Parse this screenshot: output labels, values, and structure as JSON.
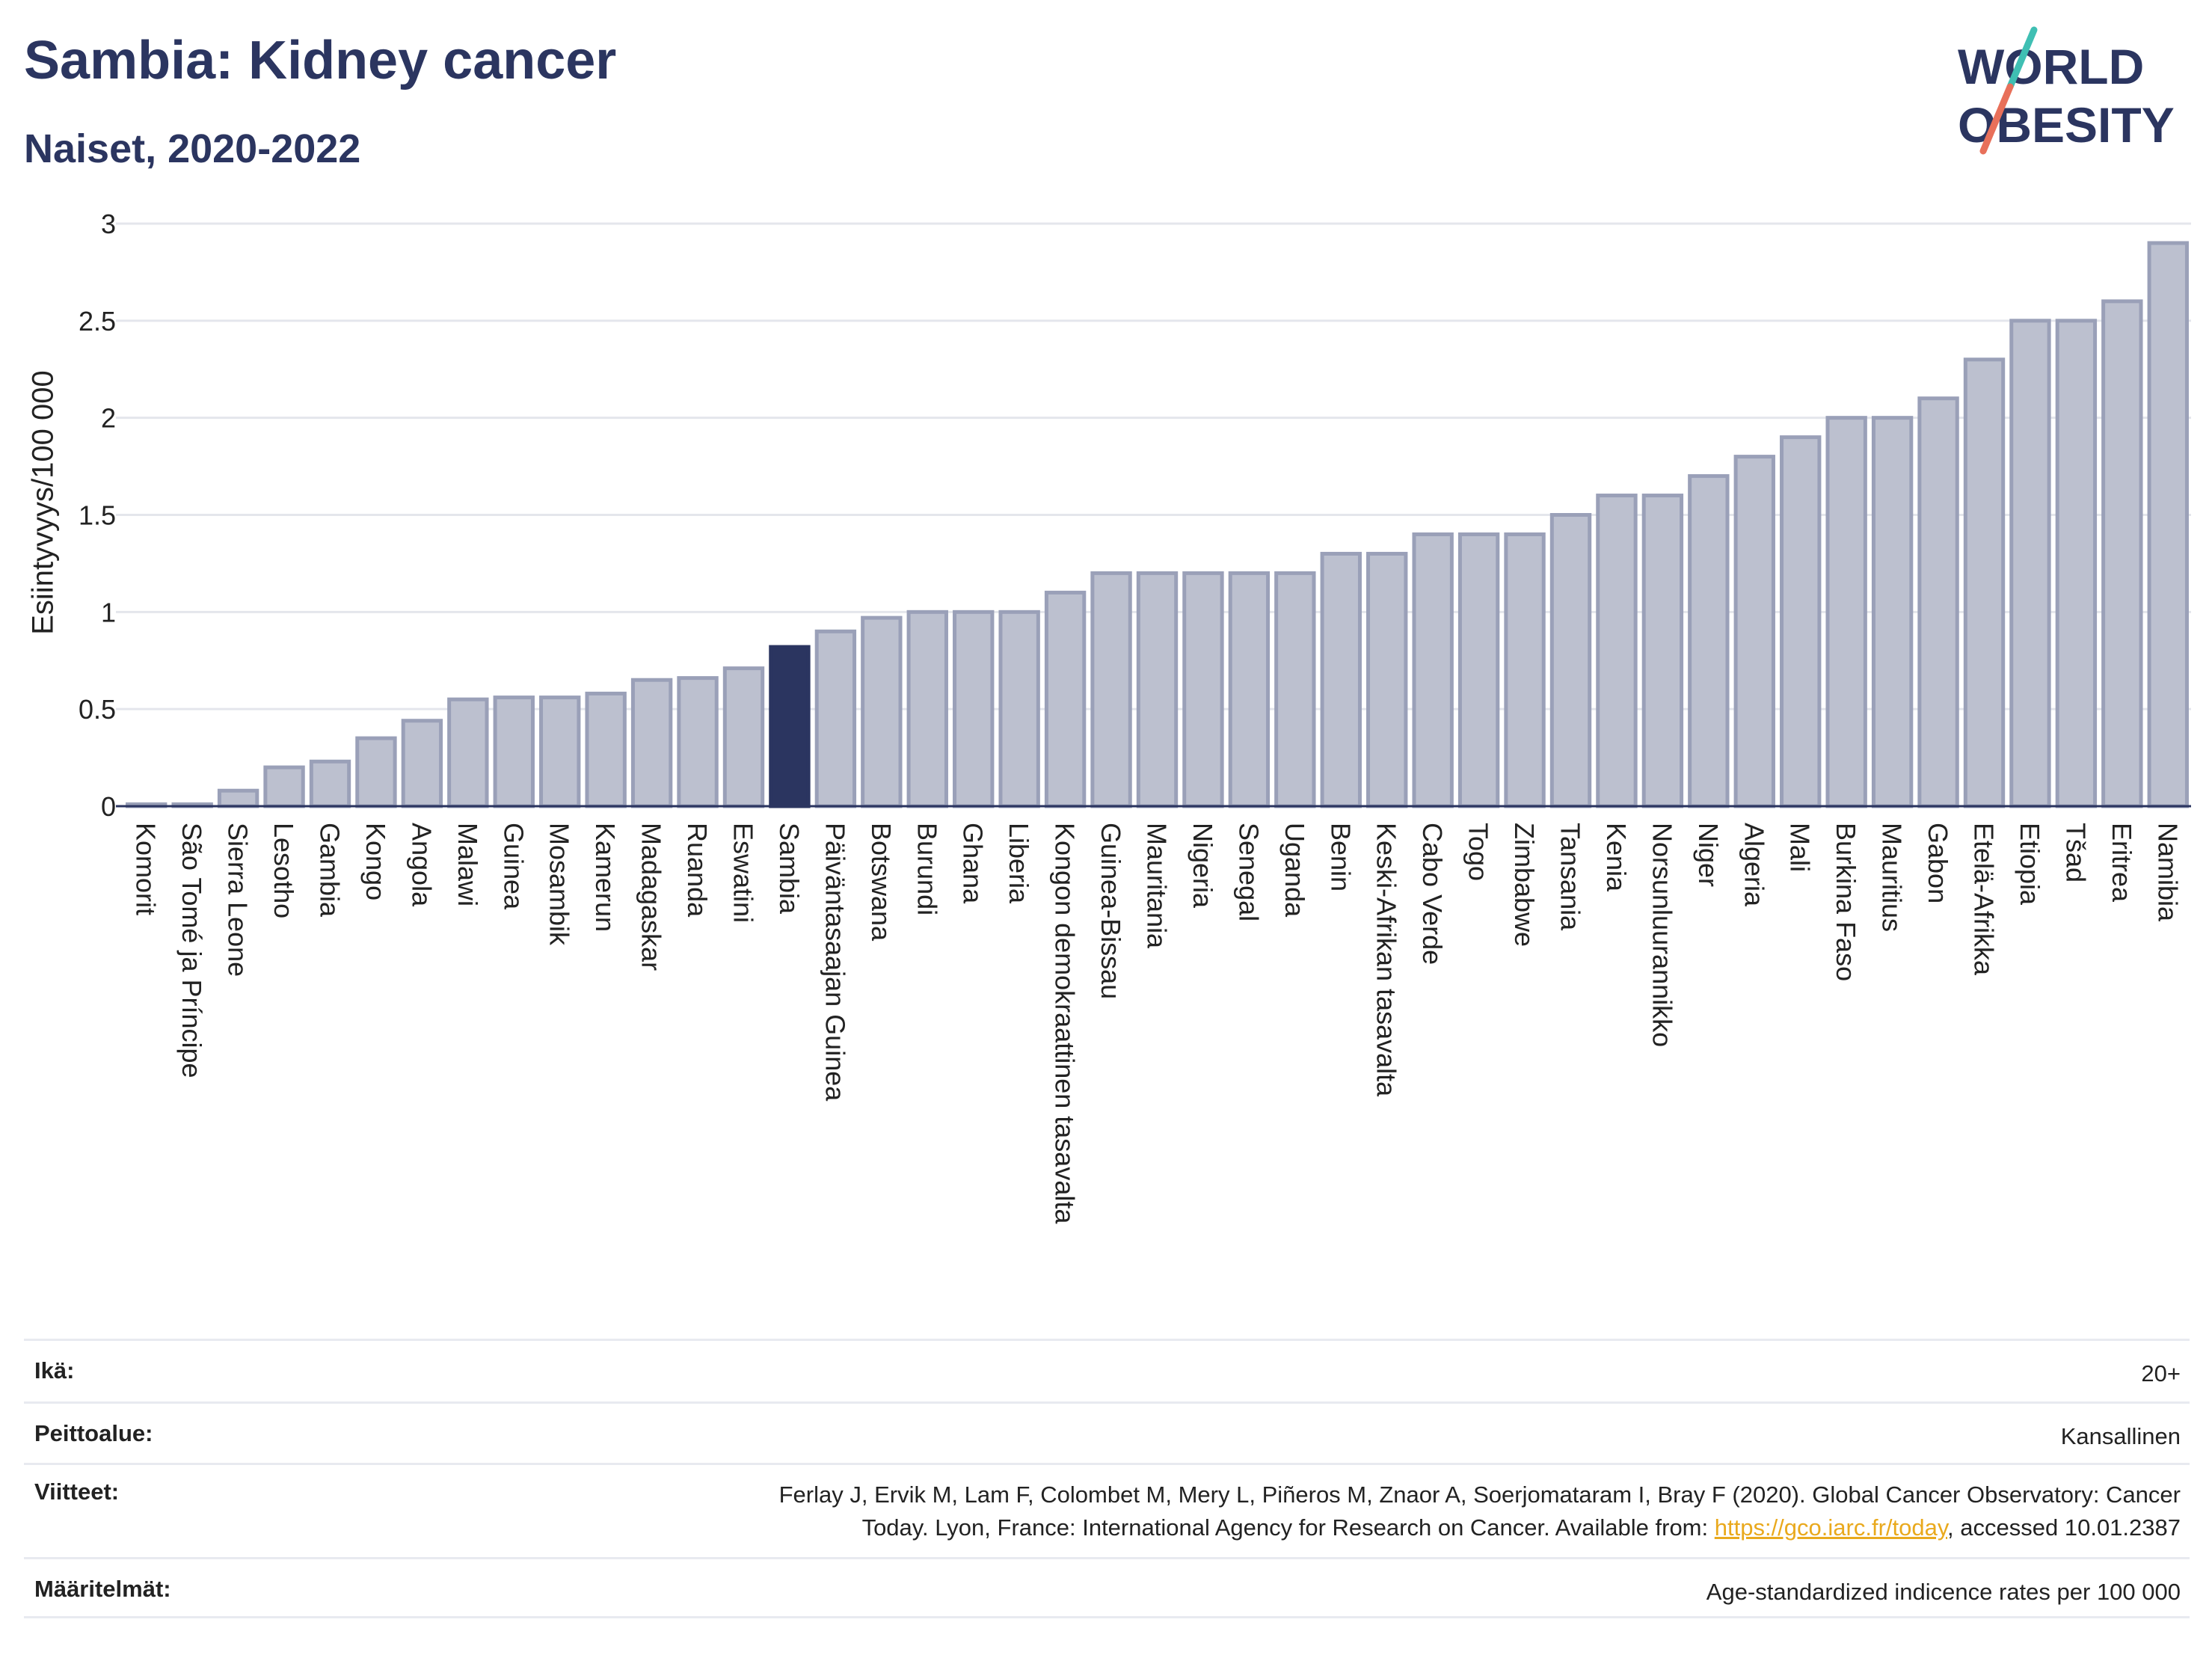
{
  "header": {
    "title": "Sambia: Kidney cancer",
    "subtitle": "Naiset, 2020-2022"
  },
  "logo": {
    "line1": "WORLD",
    "line2": "OBESITY",
    "colors": {
      "text": "#2b3560",
      "slash_teal": "#3fbfb3",
      "slash_coral": "#e8705a"
    }
  },
  "colors": {
    "bar": "#bcc0cf",
    "bar_border": "#9aa0b8",
    "highlight": "#2b3560",
    "grid": "#e4e6ec",
    "axis": "#2b3560"
  },
  "chart_data": {
    "type": "bar",
    "ylabel": "Esiintyvyys/100 000",
    "ylim": [
      0,
      3
    ],
    "yticks": [
      0,
      0.5,
      1,
      1.5,
      2,
      2.5,
      3
    ],
    "grid": true,
    "highlight": "Sambia",
    "categories": [
      "Komorit",
      "São Tomé ja Príncipe",
      "Sierra Leone",
      "Lesotho",
      "Gambia",
      "Kongo",
      "Angola",
      "Malawi",
      "Guinea",
      "Mosambik",
      "Kamerun",
      "Madagaskar",
      "Ruanda",
      "Eswatini",
      "Sambia",
      "Päiväntasaajan Guinea",
      "Botswana",
      "Burundi",
      "Ghana",
      "Liberia",
      "Kongon demokraattinen tasavalta",
      "Guinea-Bissau",
      "Mauritania",
      "Nigeria",
      "Senegal",
      "Uganda",
      "Benin",
      "Keski-Afrikan tasavalta",
      "Cabo Verde",
      "Togo",
      "Zimbabwe",
      "Tansania",
      "Kenia",
      "Norsunluurannikko",
      "Niger",
      "Algeria",
      "Mali",
      "Burkina Faso",
      "Mauritius",
      "Gabon",
      "Etelä-Afrikka",
      "Etiopia",
      "Tšad",
      "Eritrea",
      "Namibia"
    ],
    "values": [
      0.01,
      0.01,
      0.08,
      0.2,
      0.23,
      0.35,
      0.44,
      0.55,
      0.56,
      0.56,
      0.58,
      0.65,
      0.66,
      0.71,
      0.82,
      0.9,
      0.97,
      1.0,
      1.0,
      1.0,
      1.1,
      1.2,
      1.2,
      1.2,
      1.2,
      1.2,
      1.3,
      1.3,
      1.4,
      1.4,
      1.4,
      1.5,
      1.6,
      1.6,
      1.7,
      1.8,
      1.9,
      2.0,
      2.0,
      2.1,
      2.3,
      2.5,
      2.5,
      2.6,
      2.9
    ]
  },
  "meta": {
    "age_label": "Ikä:",
    "age_value": "20+",
    "coverage_label": "Peittoalue:",
    "coverage_value": "Kansallinen",
    "refs_label": "Viitteet:",
    "refs_line1": "Ferlay J, Ervik M, Lam F, Colombet M, Mery L, Piñeros M, Znaor A, Soerjomataram I, Bray F (2020). Global Cancer Observatory: Cancer",
    "refs_line2_pre": "Today. Lyon, France: International Agency for Research on Cancer. Available from: ",
    "refs_link": "https://gco.iarc.fr/today",
    "refs_line2_post": ", accessed 10.01.2387",
    "defs_label": "Määritelmät:",
    "defs_value": "Age-standardized indicence rates per 100 000"
  }
}
